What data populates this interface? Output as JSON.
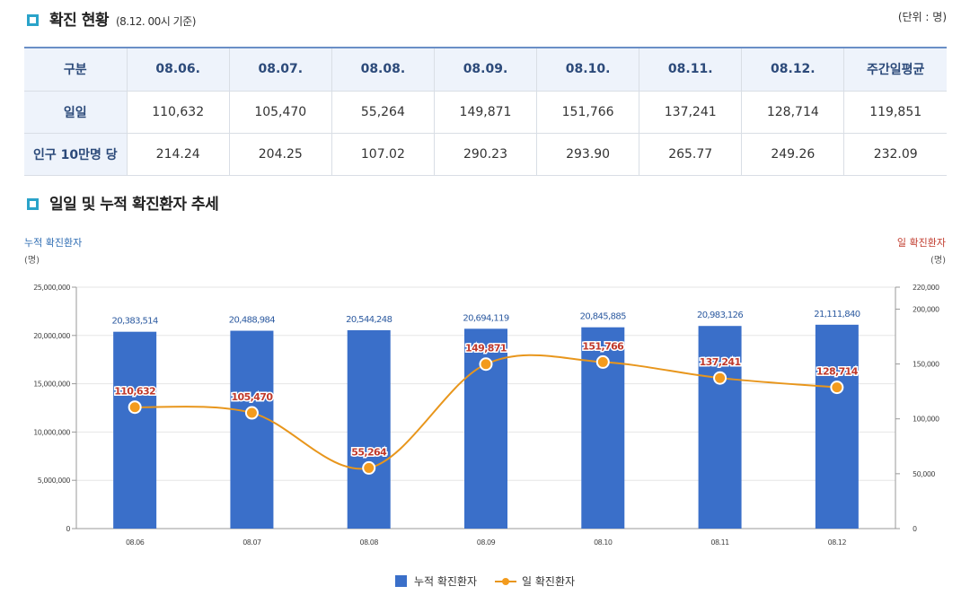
{
  "section1": {
    "title": "확진 현황",
    "subtitle": "(8.12. 00시 기준)",
    "unit": "(단위 : 명)"
  },
  "table": {
    "headers": [
      "구분",
      "08.06.",
      "08.07.",
      "08.08.",
      "08.09.",
      "08.10.",
      "08.11.",
      "08.12.",
      "주간일평균"
    ],
    "rows": [
      {
        "label": "일일",
        "values": [
          "110,632",
          "105,470",
          "55,264",
          "149,871",
          "151,766",
          "137,241",
          "128,714",
          "119,851"
        ]
      },
      {
        "label": "인구 10만명 당",
        "values": [
          "214.24",
          "204.25",
          "107.02",
          "290.23",
          "293.90",
          "265.77",
          "249.26",
          "232.09"
        ]
      }
    ]
  },
  "section2": {
    "title": "일일 및 누적 확진환자 추세"
  },
  "chart_data": {
    "type": "bar",
    "categories": [
      "08.06",
      "08.07",
      "08.08",
      "08.09",
      "08.10",
      "08.11",
      "08.12"
    ],
    "series": [
      {
        "name": "누적 확진환자",
        "kind": "bar",
        "axis": "left",
        "color": "#3a6fc9",
        "values": [
          20383514,
          20488984,
          20544248,
          20694119,
          20845885,
          20983126,
          21111840
        ],
        "labels": [
          "20,383,514",
          "20,488,984",
          "20,544,248",
          "20,694,119",
          "20,845,885",
          "20,983,126",
          "21,111,840"
        ]
      },
      {
        "name": "일 확진환자",
        "kind": "line",
        "axis": "right",
        "color": "#e8961c",
        "values": [
          110632,
          105470,
          55264,
          149871,
          151766,
          137241,
          128714
        ],
        "labels": [
          "110,632",
          "105,470",
          "55,264",
          "149,871",
          "151,766",
          "137,241",
          "128,714"
        ]
      }
    ],
    "left_axis": {
      "title": "누적 확진환자",
      "unit": "(명)",
      "min": 0,
      "max": 25000000,
      "ticks": [
        0,
        5000000,
        10000000,
        15000000,
        20000000,
        25000000
      ],
      "tick_labels": [
        "0",
        "5,000,000",
        "10,000,000",
        "15,000,000",
        "20,000,000",
        "25,000,000"
      ]
    },
    "right_axis": {
      "title": "일 확진환자",
      "unit": "(명)",
      "min": 0,
      "max": 220000,
      "ticks": [
        0,
        50000,
        100000,
        150000,
        200000,
        220000
      ],
      "tick_labels": [
        "0",
        "50,000",
        "100,000",
        "150,000",
        "200,000",
        "220,000"
      ]
    },
    "legend": [
      "누적 확진환자",
      "일 확진환자"
    ],
    "grid": true
  }
}
